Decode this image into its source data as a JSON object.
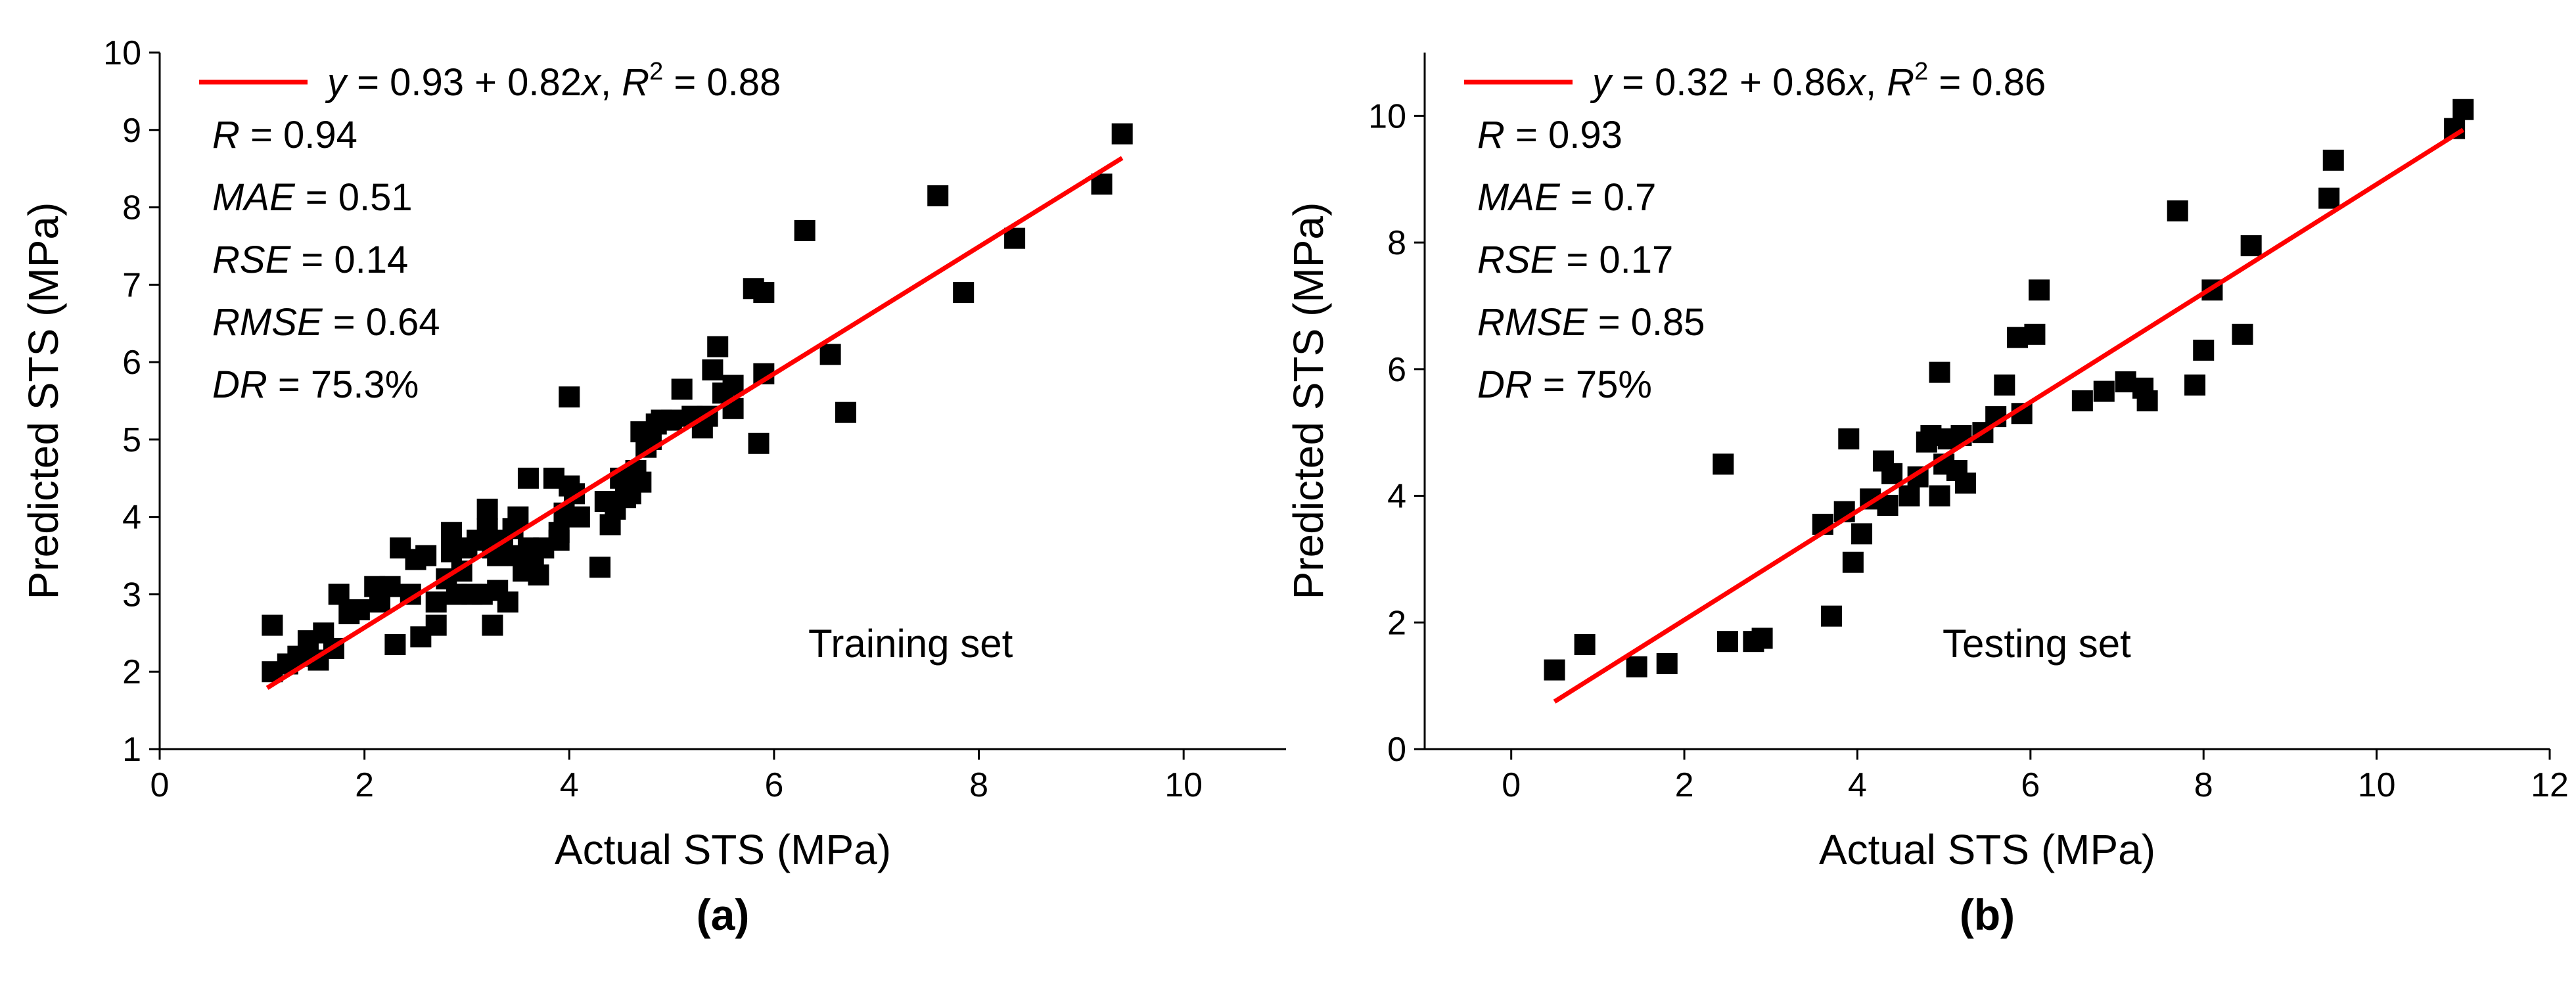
{
  "colors": {
    "fit_line": "#ff0000",
    "points": "#000000",
    "axis": "#000000",
    "background": "#ffffff"
  },
  "chart_data": [
    {
      "type": "scatter",
      "panel_label": "(a)",
      "set_label": "Training set",
      "xlabel": "Actual STS (MPa)",
      "ylabel": "Predicted STS (MPa)",
      "xlim": [
        0,
        11
      ],
      "ylim": [
        1,
        10
      ],
      "xticks": [
        0,
        2,
        4,
        6,
        8,
        10
      ],
      "yticks": [
        1,
        2,
        3,
        4,
        5,
        6,
        7,
        8,
        9,
        10
      ],
      "grid": false,
      "legend_position": "top-left",
      "fit": {
        "intercept": 0.93,
        "slope": 0.82,
        "x_range": [
          1.05,
          9.4
        ],
        "eq_y": "y",
        "eq_mid": " = 0.93 + 0.82",
        "eq_x": "x",
        "eq_sep": ", ",
        "eq_r": "R",
        "eq_sup": "2",
        "eq_tail": " = 0.88"
      },
      "stats": [
        {
          "name": "R",
          "value": " = 0.94"
        },
        {
          "name": "MAE",
          "value": " = 0.51"
        },
        {
          "name": "RSE",
          "value": " = 0.14"
        },
        {
          "name": "RMSE",
          "value": " = 0.64"
        },
        {
          "name": "DR",
          "value": " = 75.3%"
        }
      ],
      "points": [
        [
          1.1,
          2.6
        ],
        [
          1.1,
          2.0
        ],
        [
          1.25,
          2.1
        ],
        [
          1.35,
          2.2
        ],
        [
          1.45,
          2.4
        ],
        [
          1.55,
          2.15
        ],
        [
          1.6,
          2.5
        ],
        [
          1.7,
          2.3
        ],
        [
          1.75,
          3.0
        ],
        [
          1.85,
          2.75
        ],
        [
          1.95,
          2.8
        ],
        [
          2.1,
          3.1
        ],
        [
          2.15,
          2.9
        ],
        [
          2.25,
          3.1
        ],
        [
          2.3,
          2.35
        ],
        [
          2.35,
          3.6
        ],
        [
          2.45,
          3.0
        ],
        [
          2.5,
          3.45
        ],
        [
          2.55,
          2.45
        ],
        [
          2.6,
          3.5
        ],
        [
          2.7,
          2.9
        ],
        [
          2.7,
          2.6
        ],
        [
          2.8,
          3.2
        ],
        [
          2.85,
          3.8
        ],
        [
          2.85,
          3.55
        ],
        [
          2.9,
          3.0
        ],
        [
          2.95,
          3.3
        ],
        [
          3.0,
          3.6
        ],
        [
          3.05,
          3.0
        ],
        [
          3.1,
          3.7
        ],
        [
          3.15,
          3.0
        ],
        [
          3.2,
          4.1
        ],
        [
          3.2,
          3.85
        ],
        [
          3.25,
          3.6
        ],
        [
          3.25,
          2.6
        ],
        [
          3.3,
          3.5
        ],
        [
          3.3,
          3.05
        ],
        [
          3.35,
          3.7
        ],
        [
          3.4,
          2.9
        ],
        [
          3.45,
          3.85
        ],
        [
          3.5,
          4.0
        ],
        [
          3.5,
          3.5
        ],
        [
          3.55,
          3.3
        ],
        [
          3.6,
          4.5
        ],
        [
          3.6,
          3.6
        ],
        [
          3.65,
          3.45
        ],
        [
          3.7,
          3.25
        ],
        [
          3.75,
          3.6
        ],
        [
          3.85,
          4.5
        ],
        [
          3.9,
          3.7
        ],
        [
          3.9,
          3.8
        ],
        [
          3.95,
          4.05
        ],
        [
          4.0,
          4.4
        ],
        [
          4.0,
          5.55
        ],
        [
          4.05,
          4.3
        ],
        [
          4.1,
          4.0
        ],
        [
          4.3,
          3.35
        ],
        [
          4.35,
          4.2
        ],
        [
          4.4,
          3.9
        ],
        [
          4.45,
          4.1
        ],
        [
          4.5,
          4.5
        ],
        [
          4.55,
          4.25
        ],
        [
          4.6,
          4.3
        ],
        [
          4.65,
          4.6
        ],
        [
          4.7,
          4.45
        ],
        [
          4.7,
          5.1
        ],
        [
          4.75,
          4.9
        ],
        [
          4.8,
          5.0
        ],
        [
          4.85,
          5.2
        ],
        [
          4.9,
          5.25
        ],
        [
          5.0,
          5.25
        ],
        [
          5.1,
          5.65
        ],
        [
          5.2,
          5.3
        ],
        [
          5.3,
          5.15
        ],
        [
          5.35,
          5.3
        ],
        [
          5.4,
          5.9
        ],
        [
          5.45,
          6.2
        ],
        [
          5.5,
          5.6
        ],
        [
          5.6,
          5.7
        ],
        [
          5.6,
          5.4
        ],
        [
          5.8,
          6.95
        ],
        [
          5.85,
          4.95
        ],
        [
          5.9,
          6.9
        ],
        [
          5.9,
          5.85
        ],
        [
          6.3,
          7.7
        ],
        [
          6.55,
          6.1
        ],
        [
          6.7,
          5.35
        ],
        [
          7.6,
          8.15
        ],
        [
          7.85,
          6.9
        ],
        [
          8.35,
          7.6
        ],
        [
          9.2,
          8.3
        ],
        [
          9.4,
          8.95
        ]
      ]
    },
    {
      "type": "scatter",
      "panel_label": "(b)",
      "set_label": "Testing set",
      "xlabel": "Actual STS (MPa)",
      "ylabel": "Predicted STS (MPa)",
      "xlim": [
        -1,
        12
      ],
      "ylim": [
        0,
        11
      ],
      "xticks": [
        0,
        2,
        4,
        6,
        8,
        10,
        12
      ],
      "yticks": [
        0,
        2,
        4,
        6,
        8,
        10
      ],
      "grid": false,
      "legend_position": "top-left",
      "fit": {
        "intercept": 0.32,
        "slope": 0.86,
        "x_range": [
          0.5,
          11.0
        ],
        "eq_y": "y",
        "eq_mid": " = 0.32 + 0.86",
        "eq_x": "x",
        "eq_sep": ", ",
        "eq_r": "R",
        "eq_sup": "2",
        "eq_tail": " = 0.86"
      },
      "stats": [
        {
          "name": "R",
          "value": " = 0.93"
        },
        {
          "name": "MAE",
          "value": " = 0.7"
        },
        {
          "name": "RSE",
          "value": " = 0.17"
        },
        {
          "name": "RMSE",
          "value": " = 0.85"
        },
        {
          "name": "DR",
          "value": " = 75%"
        }
      ],
      "points": [
        [
          0.5,
          1.25
        ],
        [
          0.85,
          1.65
        ],
        [
          1.45,
          1.3
        ],
        [
          1.8,
          1.35
        ],
        [
          2.45,
          4.5
        ],
        [
          2.5,
          1.7
        ],
        [
          2.8,
          1.7
        ],
        [
          2.9,
          1.75
        ],
        [
          3.6,
          3.55
        ],
        [
          3.7,
          2.1
        ],
        [
          3.85,
          3.75
        ],
        [
          3.9,
          4.9
        ],
        [
          3.95,
          2.95
        ],
        [
          4.05,
          3.4
        ],
        [
          4.15,
          3.95
        ],
        [
          4.3,
          4.55
        ],
        [
          4.35,
          3.85
        ],
        [
          4.4,
          4.35
        ],
        [
          4.6,
          4.0
        ],
        [
          4.7,
          4.3
        ],
        [
          4.8,
          4.85
        ],
        [
          4.85,
          4.95
        ],
        [
          4.95,
          5.95
        ],
        [
          4.95,
          4.0
        ],
        [
          5.0,
          4.5
        ],
        [
          5.05,
          4.9
        ],
        [
          5.15,
          4.4
        ],
        [
          5.2,
          4.95
        ],
        [
          5.25,
          4.2
        ],
        [
          5.45,
          5.0
        ],
        [
          5.6,
          5.25
        ],
        [
          5.7,
          5.75
        ],
        [
          5.85,
          6.5
        ],
        [
          5.9,
          5.3
        ],
        [
          6.05,
          6.55
        ],
        [
          6.1,
          7.25
        ],
        [
          6.6,
          5.5
        ],
        [
          6.85,
          5.65
        ],
        [
          7.1,
          5.8
        ],
        [
          7.3,
          5.7
        ],
        [
          7.35,
          5.5
        ],
        [
          7.7,
          8.5
        ],
        [
          7.9,
          5.75
        ],
        [
          8.0,
          6.3
        ],
        [
          8.1,
          7.25
        ],
        [
          8.45,
          6.55
        ],
        [
          8.55,
          7.95
        ],
        [
          9.45,
          8.7
        ],
        [
          9.5,
          9.3
        ],
        [
          10.9,
          9.8
        ],
        [
          11.0,
          10.1
        ]
      ]
    }
  ]
}
